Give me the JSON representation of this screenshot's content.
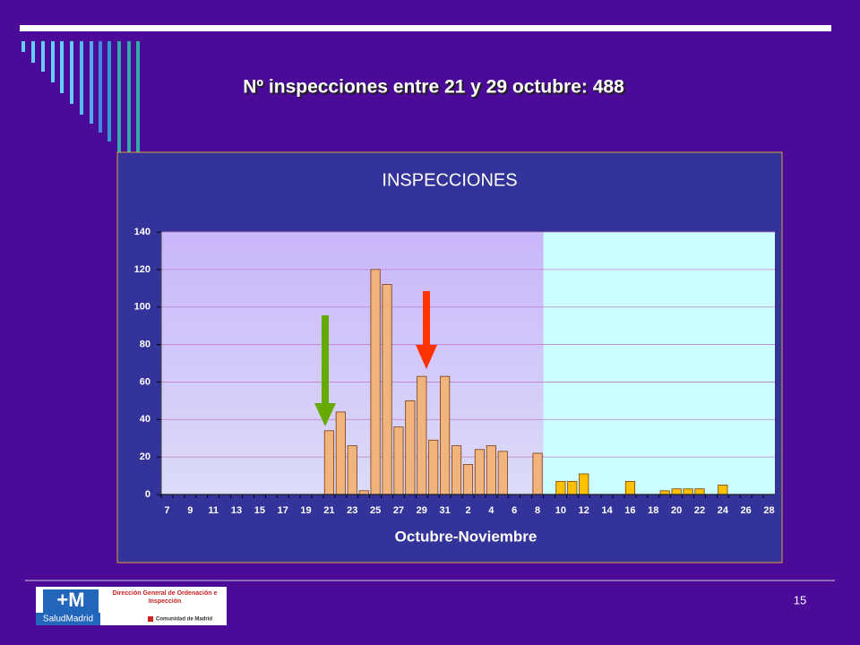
{
  "slide": {
    "title": "Nº inspecciones entre 21 y 29 octubre: 488",
    "page_number": "15",
    "logo": {
      "brand": "SaludMadrid",
      "department": "Dirección General de Ordenación e Inspección",
      "region": "Comunidad de Madrid"
    }
  },
  "chart_data": {
    "type": "bar",
    "title": "INSPECCIONES",
    "x_label": "Octubre-Noviembre",
    "categories": [
      "7",
      null,
      "9",
      null,
      "11",
      null,
      "13",
      null,
      "15",
      null,
      "17",
      null,
      "19",
      null,
      "21",
      null,
      "23",
      null,
      "25",
      null,
      "27",
      null,
      "29",
      null,
      "31",
      null,
      "2",
      null,
      "4",
      null,
      "6",
      null,
      "8",
      null,
      "10",
      null,
      "12",
      null,
      "14",
      null,
      "16",
      null,
      "18",
      null,
      "20",
      null,
      "22",
      null,
      "24",
      null,
      "26",
      null,
      "28"
    ],
    "series": [
      {
        "color": "#f0b47c",
        "values": [
          0,
          0,
          0,
          0,
          0,
          0,
          0,
          0,
          0,
          0,
          0,
          0,
          0,
          0,
          34,
          44,
          26,
          2,
          120,
          112,
          36,
          50,
          63,
          29,
          63,
          26,
          16,
          24,
          26,
          23,
          0,
          0,
          22,
          null,
          null,
          null,
          null,
          null,
          null,
          null,
          null,
          null,
          null,
          null,
          null,
          null,
          null,
          null,
          null,
          null,
          null,
          null,
          null
        ]
      },
      {
        "color": "#ffc000",
        "values": [
          null,
          null,
          null,
          null,
          null,
          null,
          null,
          null,
          null,
          null,
          null,
          null,
          null,
          null,
          null,
          null,
          null,
          null,
          null,
          null,
          null,
          null,
          null,
          null,
          null,
          null,
          null,
          null,
          null,
          null,
          null,
          null,
          null,
          0,
          7,
          7,
          11,
          0,
          0,
          0,
          7,
          0,
          0,
          2,
          3,
          3,
          3,
          0,
          5,
          0,
          0,
          0,
          0
        ]
      }
    ],
    "ylim": [
      0,
      140
    ],
    "yticks": [
      0,
      20,
      40,
      60,
      80,
      100,
      120,
      140
    ],
    "grid": true
  }
}
